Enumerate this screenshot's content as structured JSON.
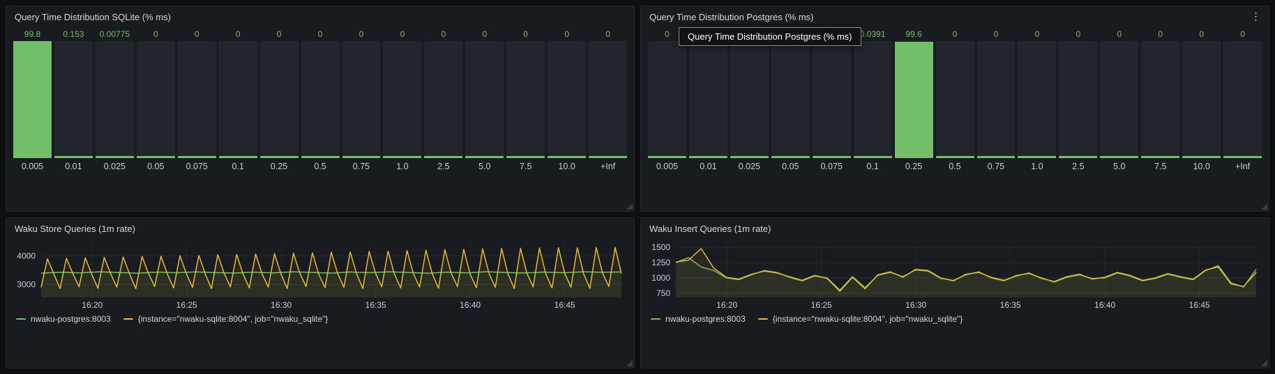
{
  "theme": {
    "page_bg": "#0e0f13",
    "panel_bg": "#181b1f",
    "panel_border": "#26282d",
    "title_color": "#d8d9da",
    "tick_color": "#ccccdc",
    "green": "#73BF69",
    "yellow": "#EAB839",
    "bar_track": "#22252b"
  },
  "icons": {
    "panel_menu": "⋮"
  },
  "chart_data": [
    {
      "type": "bar",
      "title": "Query Time Distribution SQLite (% ms)",
      "categories": [
        "0.005",
        "0.01",
        "0.025",
        "0.05",
        "0.075",
        "0.1",
        "0.25",
        "0.5",
        "0.75",
        "1.0",
        "2.5",
        "5.0",
        "7.5",
        "10.0",
        "+Inf"
      ],
      "values": [
        99.8,
        0.153,
        0.00775,
        0,
        0,
        0,
        0,
        0,
        0,
        0,
        0,
        0,
        0,
        0,
        0
      ],
      "value_labels": [
        "99.8",
        "0.153",
        "0.00775",
        "0",
        "0",
        "0",
        "0",
        "0",
        "0",
        "0",
        "0",
        "0",
        "0",
        "0",
        "0"
      ],
      "ylim": [
        0,
        100
      ],
      "bar_color": "#73BF69"
    },
    {
      "type": "bar",
      "title": "Query Time Distribution Postgres (% ms)",
      "tooltip": "Query Time Distribution Postgres (% ms)",
      "categories": [
        "0.005",
        "0.01",
        "0.025",
        "0.05",
        "0.075",
        "0.1",
        "0.25",
        "0.5",
        "0.75",
        "1.0",
        "2.5",
        "5.0",
        "7.5",
        "10.0",
        "+Inf"
      ],
      "values": [
        0,
        0,
        0,
        0,
        0,
        0.0391,
        99.6,
        0,
        0,
        0,
        0,
        0,
        0,
        0,
        0
      ],
      "value_labels": [
        "0",
        "0",
        "0",
        "0",
        "0",
        "0.0391",
        "99.6",
        "0",
        "0",
        "0",
        "0",
        "0",
        "0",
        "0",
        "0"
      ],
      "ylim": [
        0,
        100
      ],
      "bar_color": "#73BF69"
    },
    {
      "type": "line",
      "title": "Waku Store Queries (1m rate)",
      "x_domain": [
        17.3,
        48
      ],
      "x_ticks": [
        {
          "t": 20,
          "label": "16:20"
        },
        {
          "t": 25,
          "label": "16:25"
        },
        {
          "t": 30,
          "label": "16:30"
        },
        {
          "t": 35,
          "label": "16:35"
        },
        {
          "t": 40,
          "label": "16:40"
        },
        {
          "t": 45,
          "label": "16:45"
        }
      ],
      "y_ticks": [
        3000,
        4000
      ],
      "ylim": [
        2550,
        4450
      ],
      "series": [
        {
          "name": "nwaku-postgres:8003",
          "color": "#73BF69",
          "values": [
            3400,
            3430,
            3410,
            3445,
            3420,
            3398,
            3436,
            3412,
            3442,
            3418,
            3402,
            3432,
            3408,
            3446,
            3424,
            3400,
            3438,
            3414,
            3444,
            3420,
            3396,
            3434,
            3410,
            3448,
            3422,
            3404,
            3436,
            3412,
            3446,
            3430,
            3440
          ]
        },
        {
          "name": "{instance=\"nwaku-sqlite:8004\", job=\"nwaku_sqlite\"}",
          "color": "#EAB839",
          "values": [
            2900,
            3900,
            3380,
            2860,
            3920,
            3400,
            2920,
            3930,
            3370,
            2870,
            3950,
            3390,
            2910,
            3960,
            3380,
            2860,
            3980,
            3400,
            2930,
            3990,
            3370,
            2880,
            4010,
            3390,
            2900,
            4020,
            3380,
            2860,
            4040,
            3400,
            2920,
            4050,
            3370,
            2880,
            4070,
            3390,
            2910,
            4080,
            3380,
            2860,
            4100,
            3400,
            2930,
            4110,
            3370,
            2890,
            4130,
            3390,
            2900,
            4140,
            3380,
            2860,
            4160,
            3400,
            2920,
            4170,
            3370,
            2880,
            4190,
            3390,
            2910,
            4200,
            3380,
            2870,
            4220,
            3400,
            2930,
            4230,
            3370,
            2890,
            4250,
            3390,
            2900,
            4260,
            3380,
            2860,
            4270,
            3400,
            2920,
            4280,
            3370,
            2880,
            4290,
            3390,
            2910,
            4290,
            3380,
            2870,
            4300,
            3400,
            2930,
            4300,
            3380
          ]
        }
      ]
    },
    {
      "type": "line",
      "title": "Waku Insert Queries (1m rate)",
      "x_domain": [
        17.3,
        48
      ],
      "x_ticks": [
        {
          "t": 20,
          "label": "16:20"
        },
        {
          "t": 25,
          "label": "16:25"
        },
        {
          "t": 30,
          "label": "16:30"
        },
        {
          "t": 35,
          "label": "16:35"
        },
        {
          "t": 40,
          "label": "16:40"
        },
        {
          "t": 45,
          "label": "16:45"
        }
      ],
      "y_ticks": [
        750,
        1000,
        1250,
        1500
      ],
      "ylim": [
        680,
        1570
      ],
      "series": [
        {
          "name": "nwaku-postgres:8003",
          "color": "#73BF69",
          "values": [
            1250,
            1330,
            1180,
            1120,
            1000,
            970,
            1050,
            1120,
            1090,
            1010,
            950,
            1030,
            1000,
            800,
            1020,
            840,
            1040,
            1090,
            1020,
            1130,
            1110,
            990,
            960,
            1050,
            1100,
            1000,
            950,
            1040,
            1070,
            1000,
            930,
            1010,
            1050,
            990,
            1000,
            1080,
            1030,
            950,
            990,
            1060,
            1010,
            970,
            1120,
            1200,
            920,
            850,
            1140
          ]
        },
        {
          "name": "{instance=\"nwaku-sqlite:8004\", job=\"nwaku_sqlite\"}",
          "color": "#EAB839",
          "values": [
            1260,
            1290,
            1480,
            1160,
            1010,
            980,
            1060,
            1110,
            1080,
            1020,
            960,
            1040,
            990,
            780,
            1010,
            820,
            1050,
            1100,
            1010,
            1140,
            1120,
            1000,
            950,
            1060,
            1090,
            1010,
            960,
            1030,
            1080,
            990,
            940,
            1020,
            1060,
            980,
            1010,
            1090,
            1040,
            960,
            1000,
            1070,
            1020,
            980,
            1130,
            1180,
            900,
            860,
            1090
          ]
        }
      ]
    }
  ]
}
